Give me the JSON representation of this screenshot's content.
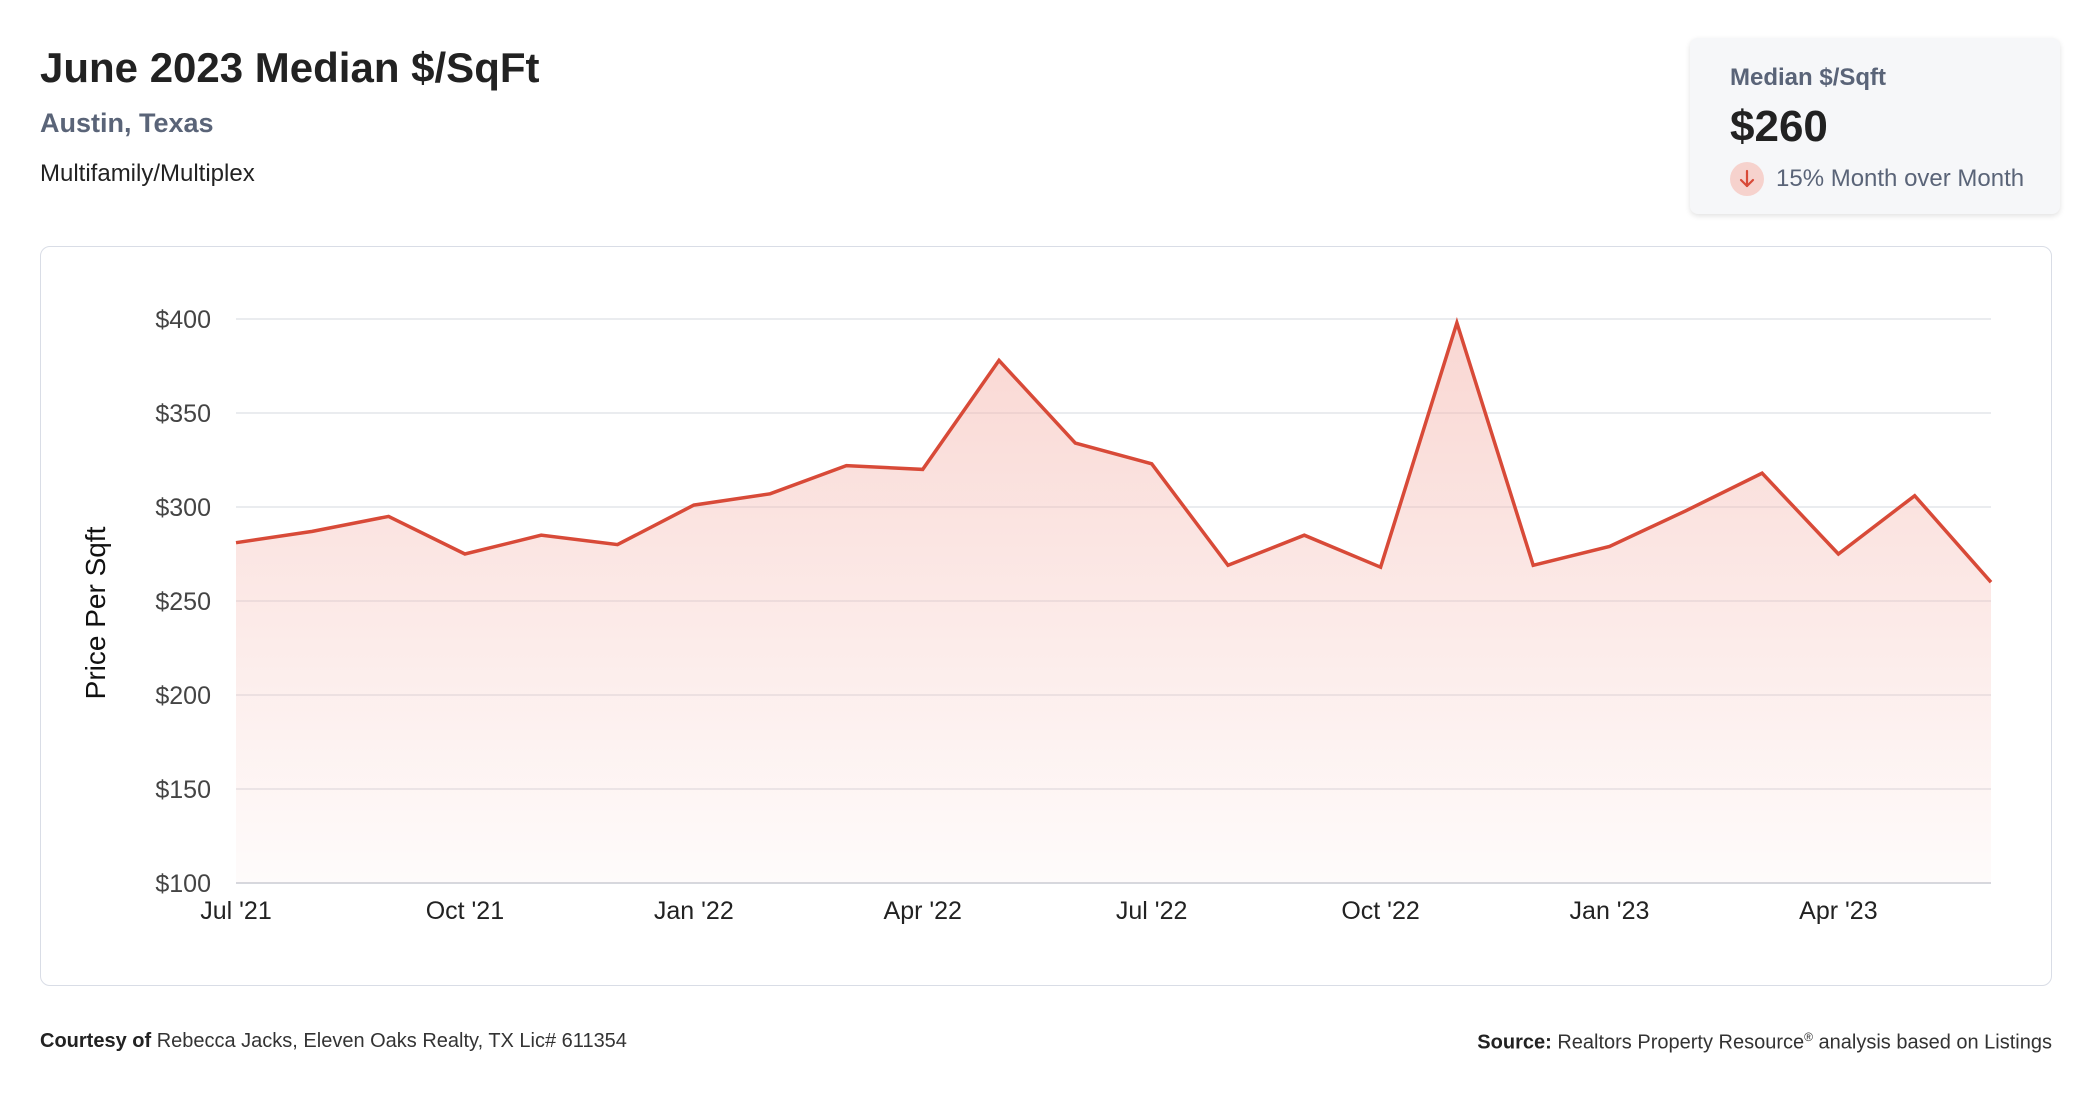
{
  "header": {
    "title": "June 2023 Median $/SqFt",
    "location": "Austin, Texas",
    "property_type": "Multifamily/Multiplex"
  },
  "kpi": {
    "label": "Median $/Sqft",
    "value": "$260",
    "change_text": "15% Month over Month",
    "direction": "down",
    "arrow_icon": "arrow-down-icon",
    "accent_color": "#d84a38"
  },
  "footer": {
    "courtesy_label": "Courtesy of",
    "courtesy_text": "Rebecca Jacks, Eleven Oaks Realty, TX Lic# 611354",
    "source_label": "Source:",
    "source_text_before": "Realtors Property Resource",
    "source_sup": "®",
    "source_text_after": " analysis based on Listings"
  },
  "chart_data": {
    "type": "area",
    "title": "",
    "xlabel": "",
    "ylabel": "Price Per Sqft",
    "ylim": [
      100,
      400
    ],
    "yticks": [
      100,
      150,
      200,
      250,
      300,
      350,
      400
    ],
    "ytick_labels": [
      "$100",
      "$150",
      "$200",
      "$250",
      "$300",
      "$350",
      "$400"
    ],
    "xtick_labels": [
      "Jul '21",
      "Oct '21",
      "Jan '22",
      "Apr '22",
      "Jul '22",
      "Oct '22",
      "Jan '23",
      "Apr '23"
    ],
    "xtick_indices": [
      0,
      3,
      6,
      9,
      12,
      15,
      18,
      21
    ],
    "grid": true,
    "line_color": "#d84a38",
    "fill_color": "#f4b6ae",
    "series": [
      {
        "x": [
          "Jul '21",
          "Aug '21",
          "Sep '21",
          "Oct '21",
          "Nov '21",
          "Dec '21",
          "Jan '22",
          "Feb '22",
          "Mar '22",
          "Apr '22",
          "May '22",
          "Jun '22",
          "Jul '22",
          "Aug '22",
          "Sep '22",
          "Oct '22",
          "Nov '22",
          "Dec '22",
          "Jan '23",
          "Feb '23",
          "Mar '23",
          "Apr '23",
          "May '23",
          "Jun '23"
        ],
        "values": [
          281,
          287,
          295,
          275,
          285,
          280,
          301,
          307,
          322,
          320,
          378,
          334,
          323,
          269,
          285,
          268,
          398,
          269,
          279,
          298,
          318,
          275,
          306,
          260
        ]
      }
    ]
  }
}
